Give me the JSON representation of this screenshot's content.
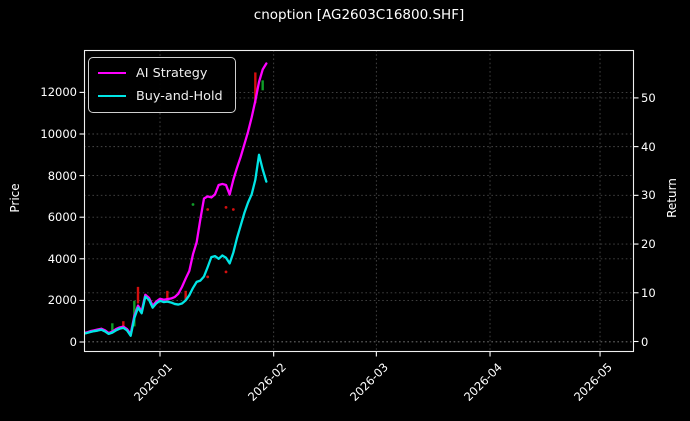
{
  "title": "cnoption [AG2603C16800.SHF]",
  "legend": {
    "items": [
      {
        "label": "AI Strategy",
        "color": "#ff00ff"
      },
      {
        "label": "Buy-and-Hold",
        "color": "#00e5e5"
      }
    ]
  },
  "axes": {
    "y_left": {
      "label": "Price",
      "ticks": [
        "0",
        "2000",
        "4000",
        "6000",
        "8000",
        "10000",
        "12000"
      ]
    },
    "y_right": {
      "label": "Return",
      "ticks": [
        "0",
        "10",
        "20",
        "30",
        "40",
        "50"
      ]
    },
    "x": {
      "ticks": [
        "2026-01",
        "2026-02",
        "2026-03",
        "2026-04",
        "2026-05"
      ]
    }
  },
  "chart_data": {
    "type": "line",
    "title": "cnoption [AG2603C16800.SHF]",
    "xlabel": "",
    "ylabel_left": "Price",
    "ylabel_right": "Return",
    "x_range": [
      "2025-12-11",
      "2026-05-10"
    ],
    "ylim_left": [
      -430,
      14040
    ],
    "ylim_right": [
      -2,
      60
    ],
    "grid": true,
    "legend_position": "upper-left",
    "background": "#000000",
    "dates": [
      "2025-12-11",
      "2025-12-12",
      "2025-12-13",
      "2025-12-14",
      "2025-12-15",
      "2025-12-16",
      "2025-12-17",
      "2025-12-18",
      "2025-12-19",
      "2025-12-20",
      "2025-12-21",
      "2025-12-22",
      "2025-12-23",
      "2025-12-24",
      "2025-12-25",
      "2025-12-26",
      "2025-12-27",
      "2025-12-28",
      "2025-12-29",
      "2025-12-30",
      "2025-12-31",
      "2026-01-01",
      "2026-01-02",
      "2026-01-03",
      "2026-01-04",
      "2026-01-05",
      "2026-01-06",
      "2026-01-07",
      "2026-01-08",
      "2026-01-09",
      "2026-01-10",
      "2026-01-11",
      "2026-01-12",
      "2026-01-13",
      "2026-01-14",
      "2026-01-15",
      "2026-01-16",
      "2026-01-17",
      "2026-01-18",
      "2026-01-19",
      "2026-01-20",
      "2026-01-21",
      "2026-01-22",
      "2026-01-23",
      "2026-01-24",
      "2026-01-25",
      "2026-01-26",
      "2026-01-27",
      "2026-01-28",
      "2026-01-29",
      "2026-01-30"
    ],
    "series": [
      {
        "name": "AI Strategy",
        "axis": "left",
        "color": "#ff00ff",
        "values": [
          420,
          460,
          520,
          560,
          600,
          640,
          560,
          430,
          500,
          620,
          700,
          740,
          620,
          380,
          1250,
          1750,
          1470,
          2270,
          2120,
          1740,
          1950,
          2080,
          2030,
          2060,
          2090,
          2160,
          2320,
          2650,
          3050,
          3420,
          4220,
          4800,
          5900,
          6900,
          7000,
          6950,
          7100,
          7550,
          7600,
          7550,
          7090,
          7800,
          8380,
          8900,
          9500,
          10100,
          10800,
          11600,
          12500,
          13100,
          13390
        ]
      },
      {
        "name": "Buy-and-Hold",
        "axis": "left",
        "color": "#00e5e5",
        "values": [
          400,
          430,
          480,
          520,
          550,
          590,
          510,
          390,
          450,
          560,
          640,
          680,
          560,
          300,
          1150,
          1650,
          1380,
          2180,
          2030,
          1650,
          1860,
          1980,
          1920,
          1940,
          1900,
          1830,
          1800,
          1850,
          2000,
          2250,
          2600,
          2890,
          2950,
          3150,
          3600,
          4080,
          4130,
          4000,
          4160,
          4050,
          3780,
          4300,
          5000,
          5600,
          6200,
          6700,
          7100,
          7800,
          9000,
          8300,
          7710
        ]
      }
    ],
    "signals": [
      {
        "date": "2025-12-19",
        "price_low": 500,
        "price_high": 900,
        "color": "#0f9d28"
      },
      {
        "date": "2025-12-22",
        "price_low": 650,
        "price_high": 1000,
        "color": "#d40f0f"
      },
      {
        "date": "2025-12-25",
        "price_low": 750,
        "price_high": 1980,
        "color": "#0f9d28"
      },
      {
        "date": "2025-12-26",
        "price_low": 1850,
        "price_high": 2650,
        "color": "#d40f0f"
      },
      {
        "date": "2026-01-03",
        "price_low": 1930,
        "price_high": 2460,
        "color": "#d40f0f"
      },
      {
        "date": "2026-01-08",
        "price_low": 1980,
        "price_high": 2460,
        "color": "#d40f0f"
      },
      {
        "date": "2026-01-27",
        "price_low": 11480,
        "price_high": 12960,
        "color": "#d40f0f"
      },
      {
        "date": "2026-01-29",
        "price_low": 12100,
        "price_high": 12580,
        "color": "#0f9d28"
      }
    ],
    "dots": [
      {
        "date": "2026-01-10",
        "price": 6610,
        "color": "#0f9d28"
      },
      {
        "date": "2026-01-14",
        "price": 6370,
        "color": "#d40f0f"
      },
      {
        "date": "2026-01-19",
        "price": 6470,
        "color": "#d40f0f"
      },
      {
        "date": "2026-01-21",
        "price": 6370,
        "color": "#d40f0f"
      },
      {
        "date": "2026-01-14",
        "price": 3130,
        "color": "#d40f0f"
      },
      {
        "date": "2026-01-19",
        "price": 3370,
        "color": "#d40f0f"
      }
    ],
    "style": {
      "grid_color": "#555555",
      "spine_color": "#efefef",
      "text_color": "#ffffff"
    }
  }
}
